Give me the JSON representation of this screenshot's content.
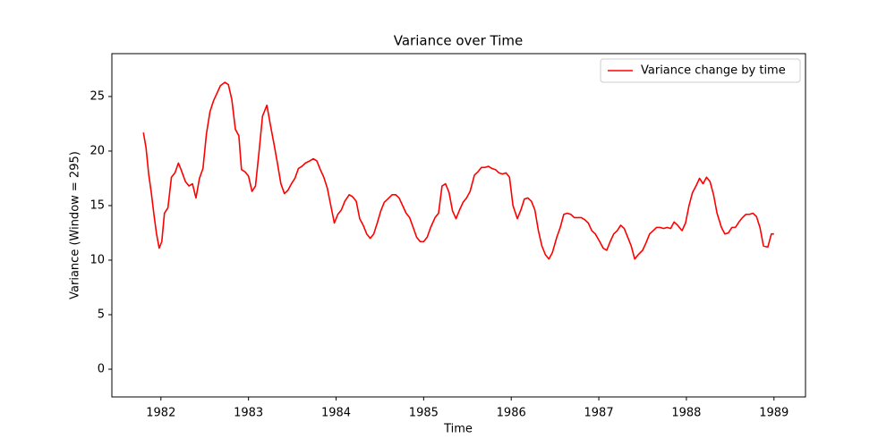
{
  "chart_data": {
    "type": "line",
    "title": "Variance over Time",
    "xlabel": "Time",
    "ylabel": "Variance (Window = 295)",
    "xlim": [
      1981.44,
      1989.36
    ],
    "ylim": [
      -2.54,
      28.93
    ],
    "xticks": [
      1982,
      1983,
      1984,
      1985,
      1986,
      1987,
      1988,
      1989
    ],
    "yticks": [
      0,
      5,
      10,
      15,
      20,
      25
    ],
    "grid": false,
    "legend": "upper right",
    "x": [
      1981.8,
      1981.83,
      1981.86,
      1981.89,
      1981.92,
      1981.95,
      1981.98,
      1982.01,
      1982.04,
      1982.08,
      1982.12,
      1982.16,
      1982.2,
      1982.23,
      1982.28,
      1982.32,
      1982.36,
      1982.4,
      1982.44,
      1982.48,
      1982.52,
      1982.56,
      1982.6,
      1982.64,
      1982.68,
      1982.73,
      1982.77,
      1982.81,
      1982.85,
      1982.89,
      1982.92,
      1982.96,
      1983.0,
      1983.04,
      1983.08,
      1983.12,
      1983.16,
      1983.21,
      1983.25,
      1983.29,
      1983.33,
      1983.37,
      1983.41,
      1983.45,
      1983.49,
      1983.53,
      1983.57,
      1983.61,
      1983.65,
      1983.7,
      1983.74,
      1983.78,
      1983.82,
      1983.86,
      1983.9,
      1983.94,
      1983.98,
      1984.02,
      1984.06,
      1984.1,
      1984.15,
      1984.19,
      1984.23,
      1984.27,
      1984.31,
      1984.35,
      1984.39,
      1984.43,
      1984.47,
      1984.51,
      1984.55,
      1984.59,
      1984.64,
      1984.68,
      1984.72,
      1984.76,
      1984.8,
      1984.84,
      1984.88,
      1984.92,
      1984.96,
      1985.0,
      1985.04,
      1985.08,
      1985.13,
      1985.17,
      1985.21,
      1985.25,
      1985.29,
      1985.33,
      1985.37,
      1985.41,
      1985.45,
      1985.49,
      1985.53,
      1985.58,
      1985.62,
      1985.66,
      1985.7,
      1985.74,
      1985.78,
      1985.82,
      1985.86,
      1985.9,
      1985.94,
      1985.98,
      1986.02,
      1986.07,
      1986.11,
      1986.15,
      1986.19,
      1986.23,
      1986.27,
      1986.31,
      1986.35,
      1986.39,
      1986.43,
      1986.47,
      1986.52,
      1986.56,
      1986.6,
      1986.64,
      1986.68,
      1986.72,
      1986.76,
      1986.8,
      1986.84,
      1986.88,
      1986.92,
      1986.96,
      1987.01,
      1987.05,
      1987.09,
      1987.13,
      1987.17,
      1987.21,
      1987.25,
      1987.29,
      1987.33,
      1987.37,
      1987.41,
      1987.45,
      1987.5,
      1987.54,
      1987.58,
      1987.62,
      1987.66,
      1987.7,
      1987.74,
      1987.78,
      1987.82,
      1987.86,
      1987.9,
      1987.95,
      1987.99,
      1988.03,
      1988.07,
      1988.11,
      1988.15,
      1988.19,
      1988.23,
      1988.27,
      1988.31,
      1988.35,
      1988.4,
      1988.44,
      1988.48,
      1988.52,
      1988.56,
      1988.6,
      1988.64,
      1988.68,
      1988.72,
      1988.76,
      1988.8,
      1988.84,
      1988.88,
      1988.93,
      1988.97,
      1989.0
    ],
    "series": [
      {
        "name": "Variance change by time",
        "color": "#ff0000",
        "values": [
          21.7,
          20.3,
          17.9,
          16.2,
          14.2,
          12.4,
          11.1,
          11.7,
          14.3,
          14.8,
          17.6,
          18.0,
          18.9,
          18.3,
          17.2,
          16.8,
          17.0,
          15.7,
          17.5,
          18.4,
          21.6,
          23.6,
          24.6,
          25.3,
          26.0,
          26.3,
          26.1,
          24.7,
          22.0,
          21.4,
          18.3,
          18.1,
          17.7,
          16.3,
          16.8,
          19.9,
          23.2,
          24.2,
          22.4,
          20.7,
          18.9,
          17.0,
          16.1,
          16.4,
          17.0,
          17.5,
          18.4,
          18.6,
          18.9,
          19.1,
          19.3,
          19.1,
          18.3,
          17.6,
          16.6,
          15.0,
          13.4,
          14.2,
          14.6,
          15.4,
          16.0,
          15.8,
          15.4,
          13.8,
          13.2,
          12.4,
          12.0,
          12.4,
          13.4,
          14.5,
          15.3,
          15.6,
          16.0,
          16.0,
          15.7,
          15.0,
          14.3,
          13.9,
          13.0,
          12.1,
          11.7,
          11.7,
          12.1,
          13.0,
          13.9,
          14.3,
          16.8,
          17.0,
          16.2,
          14.5,
          13.8,
          14.6,
          15.3,
          15.7,
          16.3,
          17.8,
          18.1,
          18.5,
          18.5,
          18.6,
          18.4,
          18.3,
          18.0,
          17.9,
          18.0,
          17.6,
          15.0,
          13.8,
          14.6,
          15.6,
          15.7,
          15.4,
          14.6,
          12.7,
          11.3,
          10.5,
          10.1,
          10.7,
          12.1,
          13.0,
          14.2,
          14.3,
          14.2,
          13.9,
          13.9,
          13.9,
          13.7,
          13.4,
          12.7,
          12.4,
          11.7,
          11.1,
          10.9,
          11.7,
          12.4,
          12.7,
          13.2,
          12.9,
          12.1,
          11.3,
          10.1,
          10.5,
          10.9,
          11.6,
          12.4,
          12.7,
          13.0,
          13.0,
          12.9,
          13.0,
          12.9,
          13.5,
          13.2,
          12.7,
          13.4,
          15.0,
          16.2,
          16.8,
          17.5,
          17.0,
          17.6,
          17.2,
          16.0,
          14.3,
          13.0,
          12.4,
          12.5,
          13.0,
          13.0,
          13.5,
          13.9,
          14.2,
          14.2,
          14.3,
          14.0,
          13.0,
          11.3,
          11.2,
          12.4,
          12.4
        ]
      }
    ]
  }
}
